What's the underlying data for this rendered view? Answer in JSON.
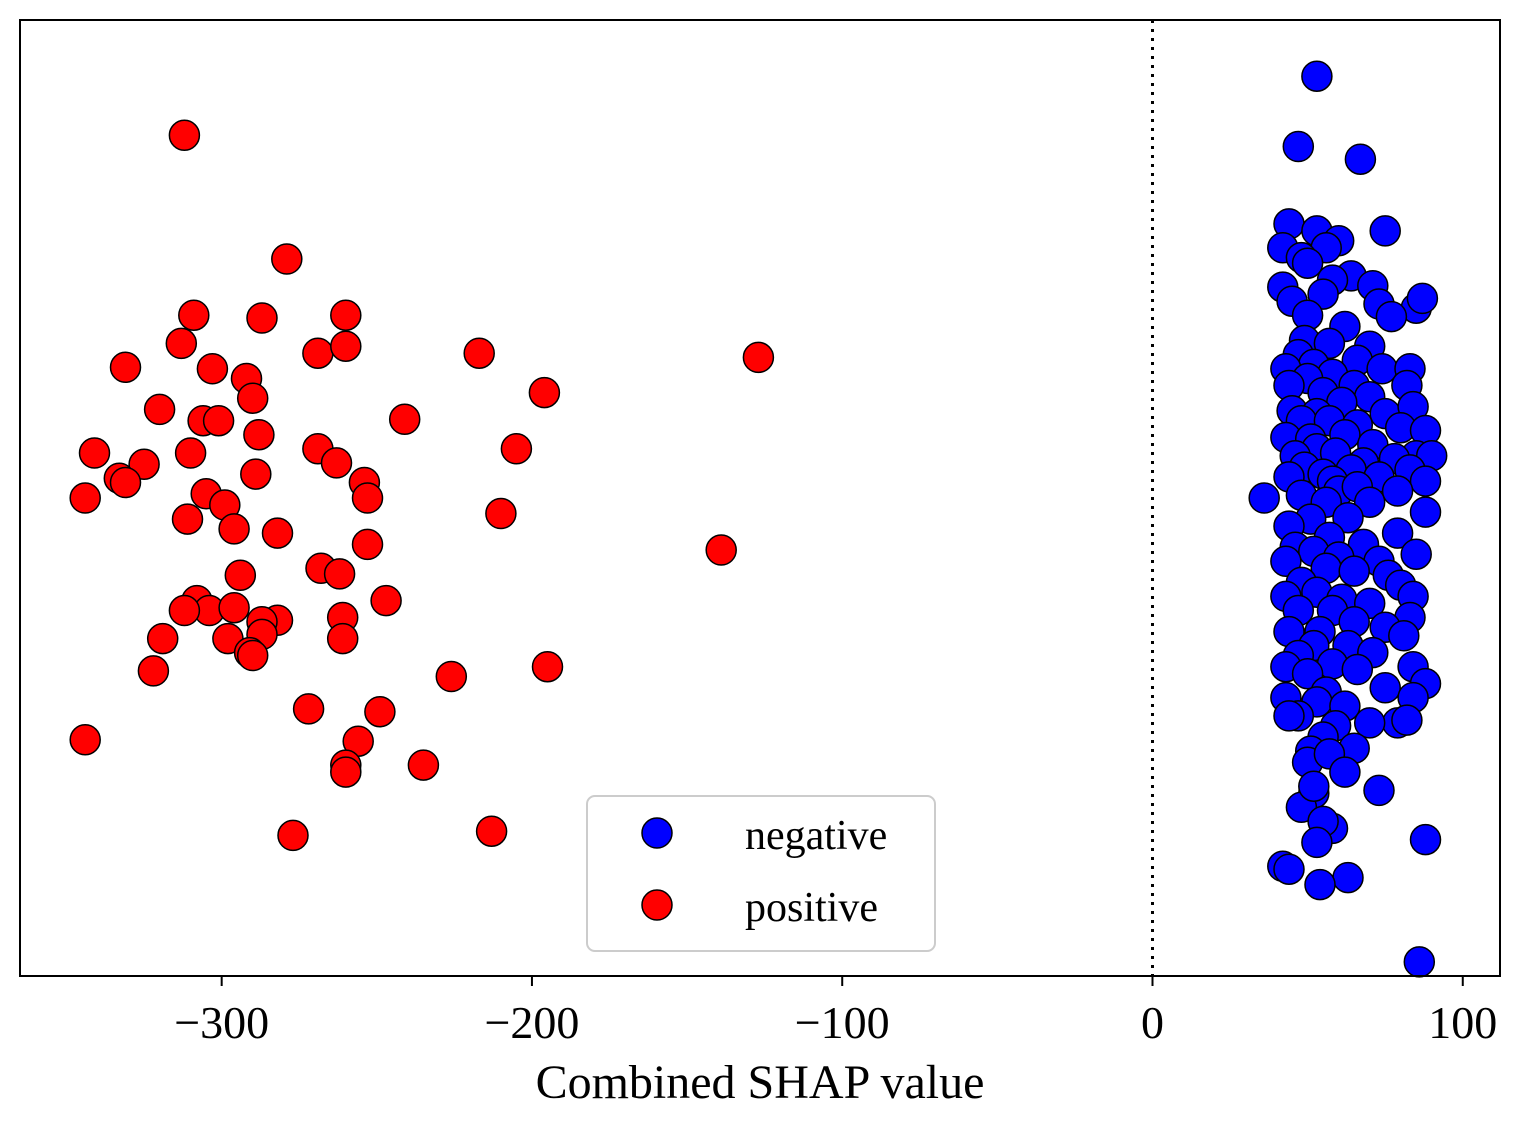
{
  "chart_data": {
    "type": "scatter",
    "title": "",
    "xlabel": "Combined SHAP value",
    "ylabel": "",
    "xlim": [
      -365,
      112
    ],
    "ylim": [
      -3.4,
      3.4
    ],
    "xticks": [
      -300,
      -200,
      -100,
      0,
      100
    ],
    "xtick_labels": [
      "−300",
      "−200",
      "−100",
      "0",
      "100"
    ],
    "y_ticks_shown": false,
    "reference_line": {
      "x": 0,
      "style": "dotted",
      "color": "#000000"
    },
    "grid": false,
    "legend": {
      "placement": "bottom-center",
      "entries": [
        "negative",
        "positive"
      ]
    },
    "series": [
      {
        "name": "negative",
        "color": "#0000ff",
        "points": [
          [
            53,
            3.0
          ],
          [
            47,
            2.5
          ],
          [
            67,
            2.41
          ],
          [
            44,
            1.95
          ],
          [
            75,
            1.9
          ],
          [
            42,
            1.78
          ],
          [
            53,
            1.9
          ],
          [
            60,
            1.83
          ],
          [
            56,
            1.78
          ],
          [
            48,
            1.71
          ],
          [
            50,
            1.67
          ],
          [
            64,
            1.58
          ],
          [
            71,
            1.51
          ],
          [
            42,
            1.5
          ],
          [
            58,
            1.55
          ],
          [
            55,
            1.45
          ],
          [
            45,
            1.4
          ],
          [
            73,
            1.38
          ],
          [
            85,
            1.35
          ],
          [
            87,
            1.42
          ],
          [
            77,
            1.29
          ],
          [
            50,
            1.3
          ],
          [
            62,
            1.22
          ],
          [
            49,
            1.12
          ],
          [
            57,
            1.1
          ],
          [
            70,
            1.08
          ],
          [
            47,
            1.02
          ],
          [
            66,
            0.98
          ],
          [
            52,
            0.95
          ],
          [
            74,
            0.92
          ],
          [
            83,
            0.92
          ],
          [
            43,
            0.92
          ],
          [
            58,
            0.88
          ],
          [
            50,
            0.85
          ],
          [
            44,
            0.8
          ],
          [
            65,
            0.8
          ],
          [
            82,
            0.8
          ],
          [
            55,
            0.75
          ],
          [
            70,
            0.72
          ],
          [
            61,
            0.68
          ],
          [
            45,
            0.62
          ],
          [
            53,
            0.6
          ],
          [
            75,
            0.6
          ],
          [
            84,
            0.65
          ],
          [
            48,
            0.55
          ],
          [
            57,
            0.55
          ],
          [
            66,
            0.52
          ],
          [
            43,
            0.43
          ],
          [
            80,
            0.5
          ],
          [
            88,
            0.48
          ],
          [
            62,
            0.45
          ],
          [
            51,
            0.42
          ],
          [
            71,
            0.38
          ],
          [
            53,
            0.35
          ],
          [
            59,
            0.32
          ],
          [
            46,
            0.3
          ],
          [
            85,
            0.3
          ],
          [
            78,
            0.28
          ],
          [
            68,
            0.25
          ],
          [
            90,
            0.3
          ],
          [
            49,
            0.22
          ],
          [
            64,
            0.2
          ],
          [
            83,
            0.2
          ],
          [
            55,
            0.17
          ],
          [
            44,
            0.15
          ],
          [
            73,
            0.15
          ],
          [
            88,
            0.12
          ],
          [
            58,
            0.12
          ],
          [
            36,
            0.0
          ],
          [
            60,
            0.05
          ],
          [
            66,
            0.08
          ],
          [
            79,
            0.05
          ],
          [
            48,
            0.02
          ],
          [
            56,
            -0.03
          ],
          [
            70,
            -0.03
          ],
          [
            88,
            -0.1
          ],
          [
            63,
            -0.14
          ],
          [
            51,
            -0.15
          ],
          [
            44,
            -0.2
          ],
          [
            79,
            -0.25
          ],
          [
            57,
            -0.28
          ],
          [
            46,
            -0.35
          ],
          [
            68,
            -0.33
          ],
          [
            52,
            -0.38
          ],
          [
            85,
            -0.4
          ],
          [
            60,
            -0.42
          ],
          [
            73,
            -0.45
          ],
          [
            43,
            -0.45
          ],
          [
            56,
            -0.5
          ],
          [
            65,
            -0.52
          ],
          [
            76,
            -0.55
          ],
          [
            48,
            -0.6
          ],
          [
            80,
            -0.62
          ],
          [
            53,
            -0.67
          ],
          [
            43,
            -0.7
          ],
          [
            84,
            -0.7
          ],
          [
            61,
            -0.72
          ],
          [
            70,
            -0.75
          ],
          [
            58,
            -0.8
          ],
          [
            47,
            -0.8
          ],
          [
            83,
            -0.85
          ],
          [
            65,
            -0.88
          ],
          [
            44,
            -0.95
          ],
          [
            54,
            -0.95
          ],
          [
            75,
            -0.92
          ],
          [
            81,
            -0.98
          ],
          [
            52,
            -1.05
          ],
          [
            63,
            -1.05
          ],
          [
            71,
            -1.1
          ],
          [
            47,
            -1.12
          ],
          [
            58,
            -1.18
          ],
          [
            43,
            -1.2
          ],
          [
            84,
            -1.2
          ],
          [
            66,
            -1.22
          ],
          [
            88,
            -1.32
          ],
          [
            50,
            -1.25
          ],
          [
            75,
            -1.35
          ],
          [
            56,
            -1.38
          ],
          [
            43,
            -1.42
          ],
          [
            84,
            -1.42
          ],
          [
            53,
            -1.45
          ],
          [
            62,
            -1.48
          ],
          [
            47,
            -1.55
          ],
          [
            79,
            -1.6
          ],
          [
            59,
            -1.62
          ],
          [
            44,
            -1.55
          ],
          [
            70,
            -1.6
          ],
          [
            82,
            -1.58
          ],
          [
            55,
            -1.7
          ],
          [
            51,
            -1.8
          ],
          [
            65,
            -1.78
          ],
          [
            50,
            -1.88
          ],
          [
            57,
            -1.82
          ],
          [
            62,
            -1.95
          ],
          [
            52,
            -2.1
          ],
          [
            73,
            -2.08
          ],
          [
            48,
            -2.2
          ],
          [
            52,
            -2.05
          ],
          [
            58,
            -2.35
          ],
          [
            55,
            -2.3
          ],
          [
            53,
            -2.45
          ],
          [
            88,
            -2.43
          ],
          [
            42,
            -2.62
          ],
          [
            44,
            -2.64
          ],
          [
            63,
            -2.7
          ],
          [
            54,
            -2.75
          ],
          [
            86,
            -3.3
          ]
        ]
      },
      {
        "name": "positive",
        "color": "#ff0000",
        "points": [
          [
            -312,
            2.58
          ],
          [
            -279,
            1.7
          ],
          [
            -309,
            1.3
          ],
          [
            -287,
            1.28
          ],
          [
            -260,
            1.3
          ],
          [
            -313,
            1.1
          ],
          [
            -269,
            1.03
          ],
          [
            -260,
            1.08
          ],
          [
            -217,
            1.03
          ],
          [
            -127,
            1.0
          ],
          [
            -331,
            0.93
          ],
          [
            -303,
            0.92
          ],
          [
            -292,
            0.85
          ],
          [
            -320,
            0.63
          ],
          [
            -290,
            0.71
          ],
          [
            -196,
            0.75
          ],
          [
            -306,
            0.55
          ],
          [
            -301,
            0.55
          ],
          [
            -241,
            0.56
          ],
          [
            -288,
            0.45
          ],
          [
            -341,
            0.32
          ],
          [
            -310,
            0.32
          ],
          [
            -269,
            0.35
          ],
          [
            -263,
            0.25
          ],
          [
            -205,
            0.35
          ],
          [
            -325,
            0.24
          ],
          [
            -333,
            0.14
          ],
          [
            -331,
            0.11
          ],
          [
            -289,
            0.17
          ],
          [
            -254,
            0.11
          ],
          [
            -305,
            0.03
          ],
          [
            -253,
            0.0
          ],
          [
            -299,
            -0.05
          ],
          [
            -344,
            0.0
          ],
          [
            -311,
            -0.15
          ],
          [
            -210,
            -0.11
          ],
          [
            -296,
            -0.22
          ],
          [
            -282,
            -0.25
          ],
          [
            -253,
            -0.33
          ],
          [
            -139,
            -0.37
          ],
          [
            -268,
            -0.5
          ],
          [
            -262,
            -0.54
          ],
          [
            -294,
            -0.55
          ],
          [
            -308,
            -0.73
          ],
          [
            -247,
            -0.73
          ],
          [
            -304,
            -0.8
          ],
          [
            -296,
            -0.78
          ],
          [
            -312,
            -0.8
          ],
          [
            -261,
            -0.85
          ],
          [
            -282,
            -0.87
          ],
          [
            -287,
            -0.88
          ],
          [
            -287,
            -0.97
          ],
          [
            -261,
            -1.0
          ],
          [
            -319,
            -1.0
          ],
          [
            -298,
            -1.0
          ],
          [
            -291,
            -1.1
          ],
          [
            -290,
            -1.12
          ],
          [
            -322,
            -1.23
          ],
          [
            -195,
            -1.2
          ],
          [
            -226,
            -1.27
          ],
          [
            -272,
            -1.5
          ],
          [
            -249,
            -1.52
          ],
          [
            -344,
            -1.72
          ],
          [
            -256,
            -1.73
          ],
          [
            -260,
            -1.9
          ],
          [
            -235,
            -1.9
          ],
          [
            -260,
            -1.95
          ],
          [
            -213,
            -2.37
          ],
          [
            -277,
            -2.4
          ]
        ]
      }
    ]
  }
}
